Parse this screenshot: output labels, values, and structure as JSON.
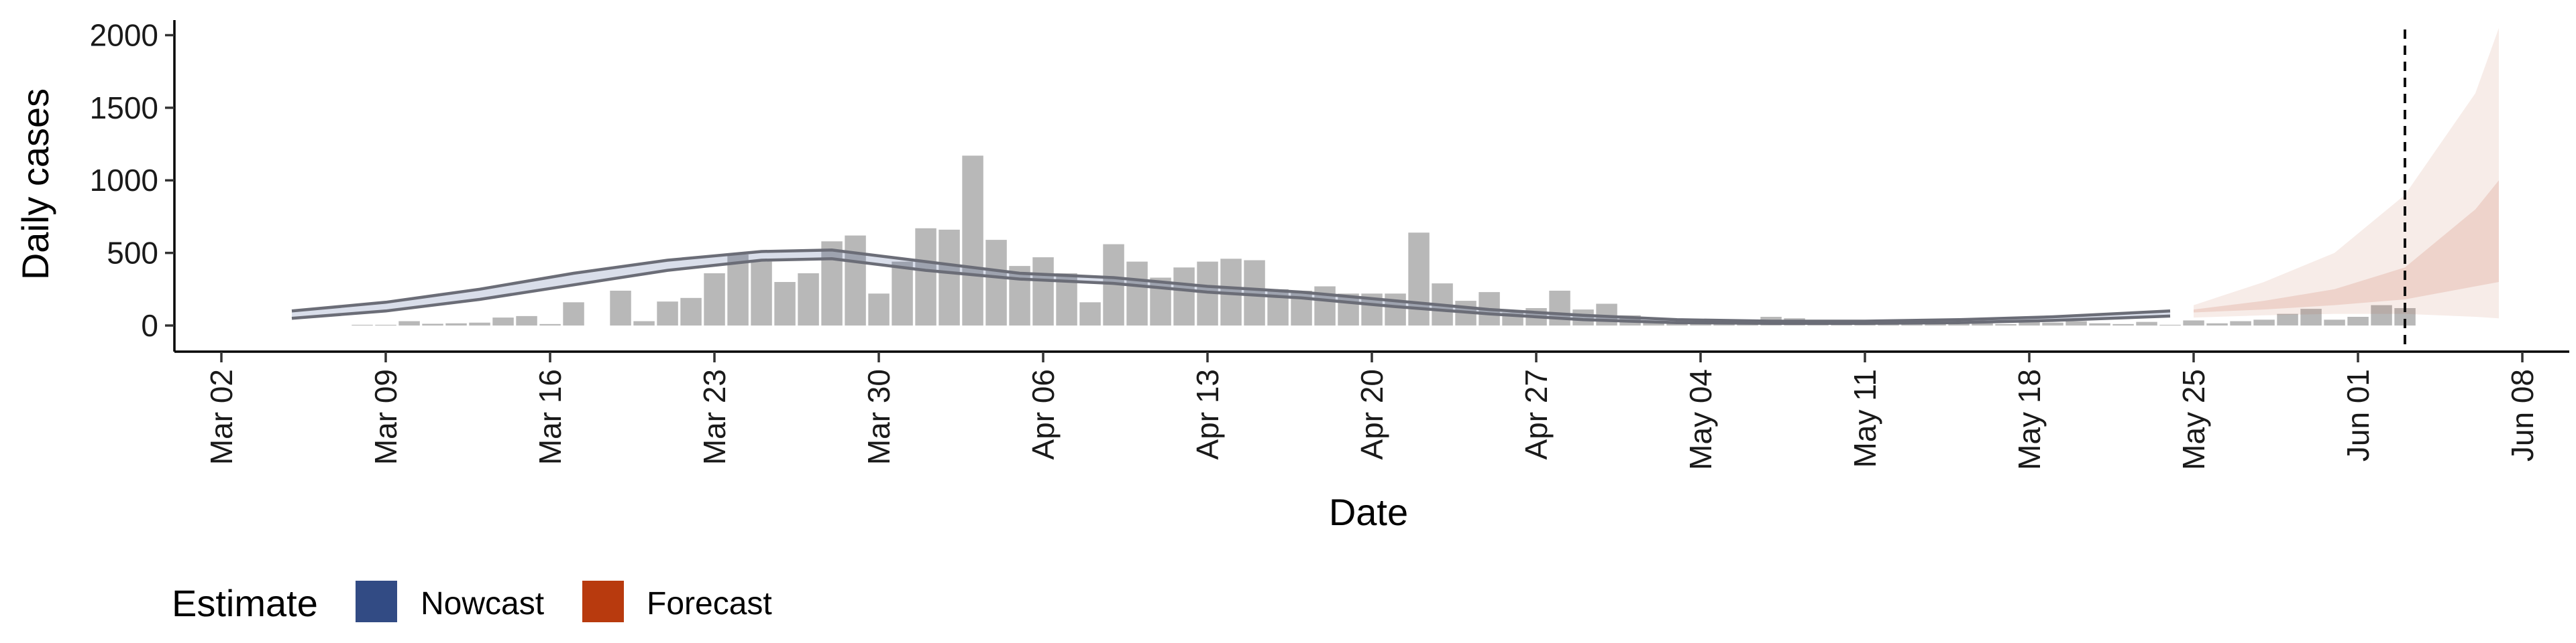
{
  "chart_data": {
    "type": "bar",
    "xlabel": "Date",
    "ylabel": "Daily cases",
    "x_range": [
      "2020-02-29",
      "2020-06-10"
    ],
    "ylim": [
      -180,
      2150
    ],
    "y_ticks": [
      0,
      500,
      1000,
      1500,
      2000
    ],
    "x_ticks": [
      {
        "date": "2020-03-02",
        "label": "Mar 02"
      },
      {
        "date": "2020-03-09",
        "label": "Mar 09"
      },
      {
        "date": "2020-03-16",
        "label": "Mar 16"
      },
      {
        "date": "2020-03-23",
        "label": "Mar 23"
      },
      {
        "date": "2020-03-30",
        "label": "Mar 30"
      },
      {
        "date": "2020-04-06",
        "label": "Apr 06"
      },
      {
        "date": "2020-04-13",
        "label": "Apr 13"
      },
      {
        "date": "2020-04-20",
        "label": "Apr 20"
      },
      {
        "date": "2020-04-27",
        "label": "Apr 27"
      },
      {
        "date": "2020-05-04",
        "label": "May 04"
      },
      {
        "date": "2020-05-11",
        "label": "May 11"
      },
      {
        "date": "2020-05-18",
        "label": "May 18"
      },
      {
        "date": "2020-05-25",
        "label": "May 25"
      },
      {
        "date": "2020-06-01",
        "label": "Jun 01"
      },
      {
        "date": "2020-06-08",
        "label": "Jun 08"
      }
    ],
    "grid": false,
    "bars": {
      "color": "#b8b8b8",
      "dates": [
        "2020-03-05",
        "2020-03-06",
        "2020-03-07",
        "2020-03-08",
        "2020-03-09",
        "2020-03-10",
        "2020-03-11",
        "2020-03-12",
        "2020-03-13",
        "2020-03-14",
        "2020-03-15",
        "2020-03-16",
        "2020-03-17",
        "2020-03-18",
        "2020-03-19",
        "2020-03-20",
        "2020-03-21",
        "2020-03-22",
        "2020-03-23",
        "2020-03-24",
        "2020-03-25",
        "2020-03-26",
        "2020-03-27",
        "2020-03-28",
        "2020-03-29",
        "2020-03-30",
        "2020-03-31",
        "2020-04-01",
        "2020-04-02",
        "2020-04-03",
        "2020-04-04",
        "2020-04-05",
        "2020-04-06",
        "2020-04-07",
        "2020-04-08",
        "2020-04-09",
        "2020-04-10",
        "2020-04-11",
        "2020-04-12",
        "2020-04-13",
        "2020-04-14",
        "2020-04-15",
        "2020-04-16",
        "2020-04-17",
        "2020-04-18",
        "2020-04-19",
        "2020-04-20",
        "2020-04-21",
        "2020-04-22",
        "2020-04-23",
        "2020-04-24",
        "2020-04-25",
        "2020-04-26",
        "2020-04-27",
        "2020-04-28",
        "2020-04-29",
        "2020-04-30",
        "2020-05-01",
        "2020-05-02",
        "2020-05-03",
        "2020-05-04",
        "2020-05-05",
        "2020-05-06",
        "2020-05-07",
        "2020-05-08",
        "2020-05-09",
        "2020-05-10",
        "2020-05-11",
        "2020-05-12",
        "2020-05-13",
        "2020-05-14",
        "2020-05-15",
        "2020-05-16",
        "2020-05-17",
        "2020-05-18",
        "2020-05-19",
        "2020-05-20",
        "2020-05-21",
        "2020-05-22",
        "2020-05-23",
        "2020-05-24",
        "2020-05-25",
        "2020-05-26",
        "2020-05-27",
        "2020-05-28",
        "2020-05-29",
        "2020-05-30",
        "2020-05-31",
        "2020-06-01",
        "2020-06-02",
        "2020-06-03"
      ],
      "values": [
        0,
        0,
        0,
        5,
        5,
        30,
        12,
        15,
        20,
        55,
        65,
        10,
        160,
        0,
        240,
        30,
        165,
        190,
        360,
        490,
        440,
        300,
        360,
        580,
        620,
        220,
        440,
        670,
        660,
        1170,
        590,
        410,
        470,
        360,
        160,
        560,
        440,
        330,
        400,
        440,
        460,
        450,
        250,
        240,
        270,
        220,
        220,
        220,
        640,
        290,
        170,
        230,
        90,
        120,
        240,
        110,
        150,
        70,
        30,
        30,
        20,
        10,
        15,
        60,
        50,
        10,
        10,
        15,
        10,
        10,
        10,
        15,
        15,
        10,
        25,
        20,
        30,
        15,
        10,
        25,
        5,
        35,
        15,
        30,
        40,
        80,
        115,
        40,
        60,
        140,
        120
      ]
    },
    "series": [
      {
        "name": "Nowcast",
        "color": "#2c4a8c",
        "dates": [
          "2020-03-05",
          "2020-03-09",
          "2020-03-13",
          "2020-03-17",
          "2020-03-21",
          "2020-03-25",
          "2020-03-28",
          "2020-04-01",
          "2020-04-05",
          "2020-04-09",
          "2020-04-13",
          "2020-04-17",
          "2020-04-21",
          "2020-04-25",
          "2020-04-29",
          "2020-05-03",
          "2020-05-07",
          "2020-05-11",
          "2020-05-15",
          "2020-05-19",
          "2020-05-24"
        ],
        "upper": [
          100,
          160,
          250,
          360,
          450,
          510,
          520,
          440,
          360,
          330,
          270,
          230,
          170,
          110,
          70,
          40,
          30,
          30,
          40,
          60,
          100
        ],
        "lower": [
          50,
          100,
          180,
          280,
          380,
          450,
          460,
          380,
          320,
          290,
          230,
          190,
          130,
          80,
          40,
          20,
          15,
          15,
          20,
          35,
          65
        ]
      },
      {
        "name": "Forecast",
        "color": "#b5401a",
        "dates": [
          "2020-05-25",
          "2020-05-28",
          "2020-05-31",
          "2020-06-03",
          "2020-06-06",
          "2020-06-07"
        ],
        "outer_upper": [
          140,
          300,
          500,
          900,
          1600,
          2050
        ],
        "inner_upper": [
          110,
          170,
          250,
          400,
          800,
          1000
        ],
        "inner_lower": [
          90,
          110,
          140,
          180,
          270,
          300
        ],
        "outer_lower": [
          55,
          70,
          80,
          80,
          60,
          50
        ]
      }
    ],
    "vline_date": "2020-06-03",
    "legend": {
      "title": "Estimate",
      "position": "bottom-left",
      "items": [
        {
          "label": "Nowcast",
          "color": "#324b84"
        },
        {
          "label": "Forecast",
          "color": "#b83a0e"
        }
      ]
    }
  }
}
